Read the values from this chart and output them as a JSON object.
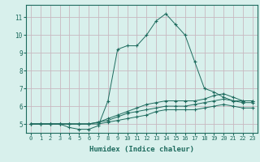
{
  "xlabel": "Humidex (Indice chaleur)",
  "bg_color": "#d8f0ec",
  "grid_color": "#c8b8c0",
  "line_color": "#1e6b5e",
  "xlim": [
    -0.5,
    23.5
  ],
  "ylim": [
    4.5,
    11.7
  ],
  "yticks": [
    5,
    6,
    7,
    8,
    9,
    10,
    11
  ],
  "xticks": [
    0,
    1,
    2,
    3,
    4,
    5,
    6,
    7,
    8,
    9,
    10,
    11,
    12,
    13,
    14,
    15,
    16,
    17,
    18,
    19,
    20,
    21,
    22,
    23
  ],
  "series1_x": [
    0,
    1,
    2,
    3,
    4,
    5,
    6,
    7,
    8,
    9,
    10,
    11,
    12,
    13,
    14,
    15,
    16,
    17,
    18,
    19,
    20,
    21,
    22,
    23
  ],
  "series1_y": [
    5.0,
    5.0,
    5.0,
    5.0,
    4.8,
    4.7,
    4.7,
    4.9,
    6.3,
    9.2,
    9.4,
    9.4,
    10.0,
    10.8,
    11.2,
    10.6,
    10.0,
    8.5,
    7.0,
    6.8,
    6.5,
    6.3,
    6.3,
    6.3
  ],
  "series2_x": [
    0,
    1,
    2,
    3,
    4,
    5,
    6,
    7,
    8,
    9,
    10,
    11,
    12,
    13,
    14,
    15,
    16,
    17,
    18,
    19,
    20,
    21,
    22,
    23
  ],
  "series2_y": [
    5.0,
    5.0,
    5.0,
    5.0,
    5.0,
    5.0,
    5.0,
    5.1,
    5.3,
    5.5,
    5.7,
    5.9,
    6.1,
    6.2,
    6.3,
    6.3,
    6.3,
    6.3,
    6.4,
    6.6,
    6.7,
    6.5,
    6.3,
    6.3
  ],
  "series3_x": [
    0,
    1,
    2,
    3,
    4,
    5,
    6,
    7,
    8,
    9,
    10,
    11,
    12,
    13,
    14,
    15,
    16,
    17,
    18,
    19,
    20,
    21,
    22,
    23
  ],
  "series3_y": [
    5.0,
    5.0,
    5.0,
    5.0,
    5.0,
    5.0,
    5.0,
    5.1,
    5.2,
    5.4,
    5.6,
    5.7,
    5.8,
    5.9,
    6.0,
    6.0,
    6.0,
    6.1,
    6.2,
    6.3,
    6.4,
    6.3,
    6.2,
    6.2
  ],
  "series4_x": [
    0,
    1,
    2,
    3,
    4,
    5,
    6,
    7,
    8,
    9,
    10,
    11,
    12,
    13,
    14,
    15,
    16,
    17,
    18,
    19,
    20,
    21,
    22,
    23
  ],
  "series4_y": [
    5.0,
    5.0,
    5.0,
    5.0,
    5.0,
    5.0,
    5.0,
    5.0,
    5.1,
    5.2,
    5.3,
    5.4,
    5.5,
    5.7,
    5.8,
    5.8,
    5.8,
    5.8,
    5.9,
    6.0,
    6.1,
    6.0,
    5.9,
    5.9
  ]
}
